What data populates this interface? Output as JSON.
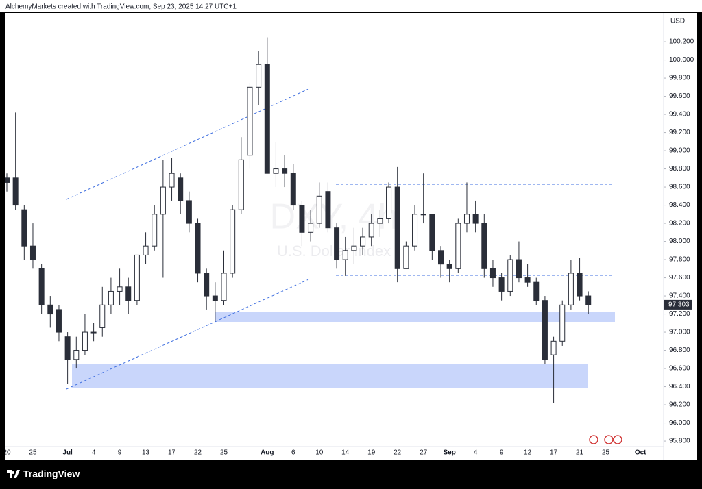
{
  "chart_data": {
    "type": "candlestick",
    "header": "AlchemyMarkets created with TradingView.com, Sep 23, 2025 14:27 UTC+1",
    "currency": "USD",
    "watermark_symbol": "DXY, 4h",
    "watermark_name": "U.S. Dollar Index",
    "brand": "TradingView",
    "categories": [
      "20",
      null,
      null,
      "25",
      null,
      null,
      null,
      "Jul",
      null,
      null,
      "4",
      null,
      null,
      "9",
      null,
      null,
      "13",
      null,
      null,
      "17",
      null,
      null,
      "22",
      null,
      null,
      "25",
      null,
      null,
      null,
      null,
      "Aug",
      null,
      null,
      "6",
      null,
      null,
      "10",
      null,
      null,
      "14",
      null,
      null,
      "19",
      null,
      null,
      "22",
      null,
      null,
      "27",
      null,
      null,
      "Sep",
      null,
      null,
      "4",
      null,
      null,
      "9",
      null,
      null,
      "12",
      null,
      null,
      "17",
      null,
      null,
      "21",
      null,
      null,
      "25",
      null,
      null,
      null,
      "Oct",
      null
    ],
    "open": [
      98.7,
      98.7,
      98.35,
      97.95,
      97.7,
      97.3,
      97.25,
      96.95,
      96.7,
      96.8,
      97.0,
      97.05,
      97.3,
      97.45,
      97.5,
      97.35,
      97.85,
      97.95,
      98.3,
      98.6,
      98.7,
      98.45,
      98.2,
      97.65,
      97.4,
      97.35,
      97.65,
      98.35,
      98.95,
      99.7,
      99.95,
      98.75,
      98.8,
      98.75,
      98.4,
      98.1,
      98.2,
      98.55,
      98.15,
      97.8,
      97.9,
      97.95,
      98.05,
      98.2,
      98.25,
      98.6,
      97.7,
      97.95,
      98.3,
      98.3,
      97.9,
      97.75,
      97.7,
      98.2,
      98.3,
      98.2,
      97.7,
      97.6,
      97.45,
      97.8,
      97.6,
      97.55,
      97.35,
      96.75,
      96.9,
      97.3,
      97.65,
      97.4,
      null,
      null,
      null,
      null,
      null,
      null,
      null
    ],
    "high": [
      98.75,
      99.42,
      98.4,
      98.2,
      97.75,
      97.4,
      97.3,
      97.0,
      96.95,
      97.2,
      97.1,
      97.5,
      97.6,
      97.7,
      97.6,
      97.85,
      98.1,
      98.4,
      98.9,
      98.92,
      98.75,
      98.55,
      98.25,
      97.7,
      97.55,
      97.9,
      98.4,
      99.15,
      99.75,
      100.1,
      100.25,
      99.1,
      98.95,
      98.85,
      98.45,
      98.35,
      98.65,
      98.65,
      98.2,
      98.05,
      98.15,
      98.15,
      98.3,
      98.35,
      98.65,
      98.82,
      98.0,
      98.4,
      98.75,
      98.3,
      97.95,
      97.8,
      98.25,
      98.65,
      98.45,
      98.3,
      97.8,
      97.65,
      97.85,
      98.0,
      97.75,
      97.6,
      97.4,
      96.95,
      97.35,
      97.8,
      97.82,
      97.45,
      null,
      null,
      null,
      null,
      null,
      null,
      null
    ],
    "low": [
      98.55,
      98.35,
      97.8,
      97.7,
      97.2,
      97.05,
      96.9,
      96.43,
      96.6,
      96.75,
      96.9,
      96.95,
      97.2,
      97.3,
      97.2,
      97.3,
      97.75,
      97.9,
      97.6,
      98.45,
      98.3,
      98.1,
      97.55,
      97.25,
      97.12,
      97.3,
      97.6,
      98.3,
      98.8,
      99.5,
      98.75,
      98.6,
      98.6,
      98.35,
      97.95,
      98.0,
      98.15,
      98.1,
      97.7,
      97.62,
      97.75,
      97.85,
      97.95,
      98.05,
      98.2,
      97.55,
      97.7,
      97.9,
      98.2,
      97.8,
      97.6,
      97.55,
      97.65,
      98.1,
      98.1,
      97.6,
      97.5,
      97.35,
      97.4,
      97.55,
      97.5,
      97.3,
      96.65,
      96.22,
      96.85,
      97.25,
      97.35,
      97.2,
      null,
      null,
      null,
      null,
      null,
      null,
      null
    ],
    "close": [
      98.65,
      98.4,
      97.95,
      97.8,
      97.3,
      97.2,
      97.0,
      96.7,
      96.8,
      97.0,
      97.0,
      97.3,
      97.45,
      97.5,
      97.35,
      97.85,
      97.95,
      98.3,
      98.6,
      98.75,
      98.45,
      98.2,
      97.65,
      97.4,
      97.35,
      97.65,
      98.35,
      98.9,
      99.7,
      99.95,
      98.75,
      98.8,
      98.75,
      98.4,
      98.1,
      98.2,
      98.5,
      98.15,
      97.8,
      97.9,
      97.95,
      98.05,
      98.2,
      98.25,
      98.6,
      97.7,
      97.95,
      98.3,
      98.3,
      97.9,
      97.75,
      97.7,
      98.2,
      98.3,
      98.2,
      97.7,
      97.6,
      97.45,
      97.8,
      97.6,
      97.55,
      97.35,
      96.7,
      96.9,
      97.3,
      97.65,
      97.4,
      97.303,
      null,
      null,
      null,
      null,
      null,
      null,
      null
    ],
    "up_color": "#ffffff",
    "down_color": "#2a2e39",
    "ylim": [
      95.74,
      100.51
    ],
    "yticks": [
      {
        "value": 95.8,
        "label": "95.800"
      },
      {
        "value": 96.0,
        "label": "96.000"
      },
      {
        "value": 96.2,
        "label": "96.200"
      },
      {
        "value": 96.4,
        "label": "96.400"
      },
      {
        "value": 96.6,
        "label": "96.600"
      },
      {
        "value": 96.8,
        "label": "96.800"
      },
      {
        "value": 97.0,
        "label": "97.000"
      },
      {
        "value": 97.2,
        "label": "97.200"
      },
      {
        "value": 97.4,
        "label": "97.400"
      },
      {
        "value": 97.6,
        "label": "97.600"
      },
      {
        "value": 97.8,
        "label": "97.800"
      },
      {
        "value": 98.0,
        "label": "98.000"
      },
      {
        "value": 98.2,
        "label": "98.200"
      },
      {
        "value": 98.4,
        "label": "98.400"
      },
      {
        "value": 98.6,
        "label": "98.600"
      },
      {
        "value": 98.8,
        "label": "98.800"
      },
      {
        "value": 99.0,
        "label": "99.000"
      },
      {
        "value": 99.2,
        "label": "99.200"
      },
      {
        "value": 99.4,
        "label": "99.400"
      },
      {
        "value": 99.6,
        "label": "99.600"
      },
      {
        "value": 99.8,
        "label": "99.800"
      },
      {
        "value": 100.0,
        "label": "100.000"
      },
      {
        "value": 100.2,
        "label": "100.200"
      }
    ]
  }
}
